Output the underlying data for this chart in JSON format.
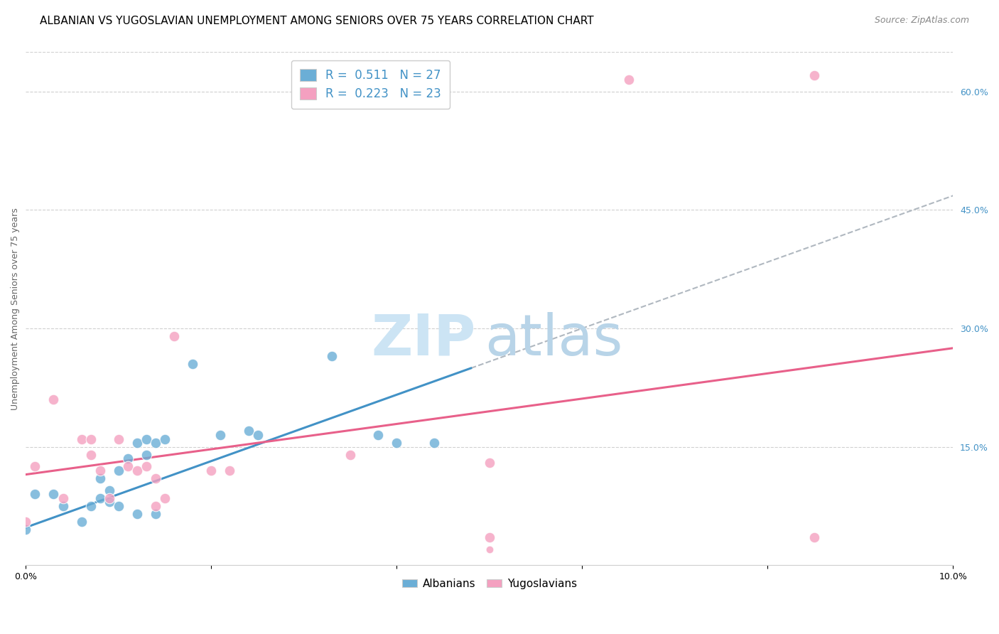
{
  "title": "ALBANIAN VS YUGOSLAVIAN UNEMPLOYMENT AMONG SENIORS OVER 75 YEARS CORRELATION CHART",
  "source": "Source: ZipAtlas.com",
  "ylabel": "Unemployment Among Seniors over 75 years",
  "xlim": [
    0.0,
    0.1
  ],
  "ylim": [
    0.0,
    0.65
  ],
  "x_ticks": [
    0.0,
    0.02,
    0.04,
    0.06,
    0.08,
    0.1
  ],
  "y_ticks_right": [
    0.15,
    0.3,
    0.45,
    0.6
  ],
  "y_tick_labels_right": [
    "15.0%",
    "30.0%",
    "45.0%",
    "60.0%"
  ],
  "albanian_R": 0.511,
  "albanian_N": 27,
  "yugoslavian_R": 0.223,
  "yugoslavian_N": 23,
  "albanian_color": "#6baed6",
  "yugoslavian_color": "#f4a0c0",
  "albanian_line_color": "#4292c6",
  "yugoslavian_line_color": "#e8608a",
  "trend_dash_color": "#b0b8c0",
  "background_color": "#ffffff",
  "alb_line_intercept": 0.048,
  "alb_line_slope": 4.2,
  "alb_line_solid_end": 0.048,
  "yug_line_intercept": 0.115,
  "yug_line_slope": 1.6,
  "albanian_scatter_x": [
    0.0,
    0.001,
    0.003,
    0.004,
    0.006,
    0.007,
    0.008,
    0.008,
    0.009,
    0.009,
    0.01,
    0.01,
    0.011,
    0.012,
    0.012,
    0.013,
    0.013,
    0.014,
    0.014,
    0.015,
    0.018,
    0.021,
    0.024,
    0.025,
    0.033,
    0.038,
    0.044
  ],
  "albanian_scatter_y": [
    0.045,
    0.09,
    0.09,
    0.075,
    0.055,
    0.075,
    0.11,
    0.085,
    0.095,
    0.08,
    0.12,
    0.075,
    0.135,
    0.065,
    0.155,
    0.16,
    0.14,
    0.155,
    0.065,
    0.16,
    0.255,
    0.165,
    0.17,
    0.165,
    0.265,
    0.165,
    0.155
  ],
  "yugoslavian_scatter_x": [
    0.0,
    0.001,
    0.003,
    0.004,
    0.006,
    0.007,
    0.007,
    0.008,
    0.009,
    0.01,
    0.011,
    0.012,
    0.013,
    0.014,
    0.014,
    0.015,
    0.016,
    0.02,
    0.022,
    0.035,
    0.05,
    0.085
  ],
  "yugoslavian_scatter_y": [
    0.055,
    0.125,
    0.21,
    0.085,
    0.16,
    0.16,
    0.14,
    0.12,
    0.085,
    0.16,
    0.125,
    0.12,
    0.125,
    0.11,
    0.075,
    0.085,
    0.29,
    0.12,
    0.12,
    0.14,
    0.035,
    0.62
  ],
  "yug_outlier_x": [
    0.05
  ],
  "yug_outlier_y": [
    0.02
  ],
  "yug_outlier2_x": [
    0.085
  ],
  "yug_outlier2_y": [
    0.035
  ],
  "yug_top_x": [
    0.065
  ],
  "yug_top_y": [
    0.615
  ],
  "title_fontsize": 11,
  "axis_label_fontsize": 9,
  "tick_fontsize": 9,
  "legend_fontsize": 12
}
